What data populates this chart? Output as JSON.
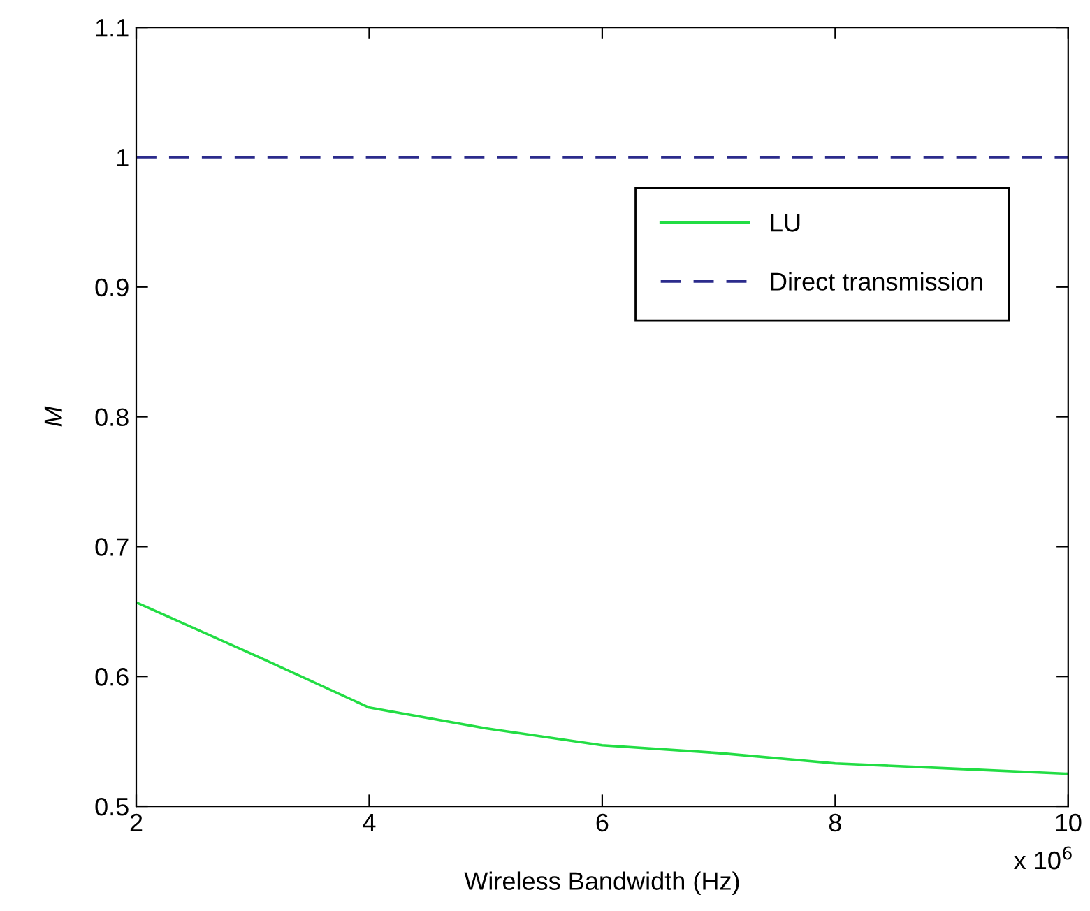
{
  "chart_data": {
    "type": "line",
    "xlabel": "Wireless Bandwidth (Hz)",
    "ylabel": "M",
    "x": [
      2,
      3,
      4,
      5,
      6,
      7,
      8,
      9,
      10
    ],
    "series": [
      {
        "name": "LU",
        "color": "#22dd44",
        "line_style": "solid",
        "values": [
          0.657,
          0.617,
          0.576,
          0.56,
          0.547,
          0.541,
          0.533,
          0.529,
          0.525
        ]
      },
      {
        "name": "Direct transmission",
        "color": "#2b2b8c",
        "line_style": "dashed",
        "values": [
          1,
          1,
          1,
          1,
          1,
          1,
          1,
          1,
          1
        ]
      }
    ],
    "xlim": [
      2,
      10
    ],
    "xticks": [
      2,
      4,
      6,
      8,
      10
    ],
    "ylim": [
      0.5,
      1.1
    ],
    "yticks": [
      0.5,
      0.6,
      0.7,
      0.8,
      0.9,
      1,
      1.1
    ],
    "annotations": [
      "x 10$^{6}$"
    ],
    "legend": "top right",
    "grid": false,
    "marker": "none"
  }
}
